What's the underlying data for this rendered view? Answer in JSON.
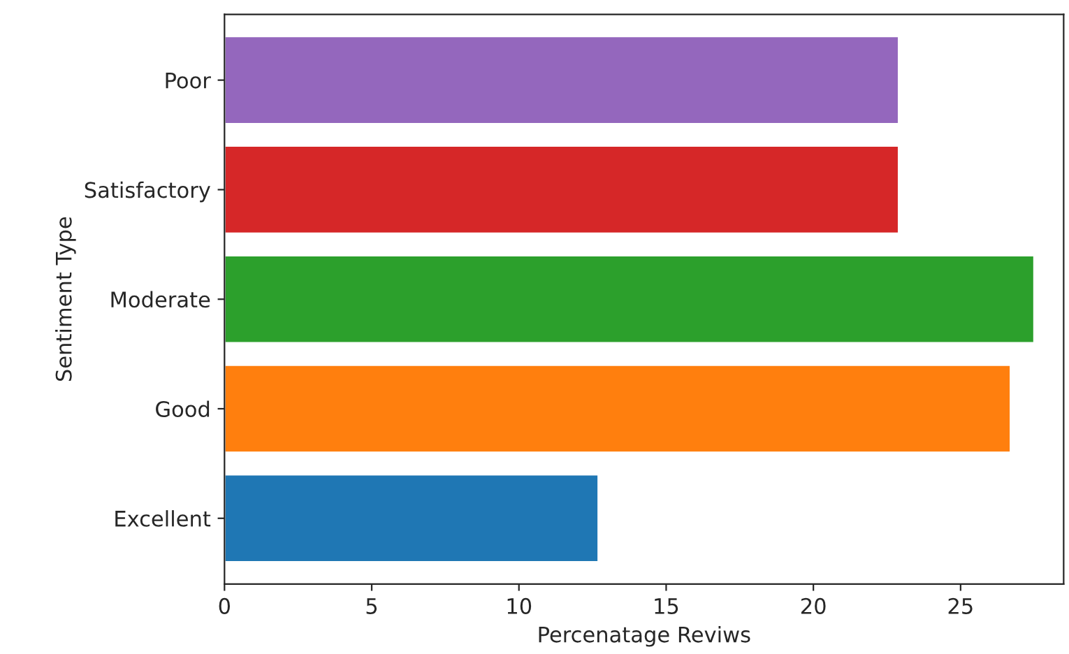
{
  "chart_data": {
    "type": "bar",
    "orientation": "horizontal",
    "xlabel": "Percenatage Reviws",
    "ylabel": "Sentiment Type",
    "categories": [
      "Poor",
      "Satisfactory",
      "Moderate",
      "Good",
      "Excellent"
    ],
    "values": [
      22.9,
      22.9,
      27.5,
      26.7,
      12.7
    ],
    "colors": [
      "#9467bd",
      "#d62728",
      "#2ca02c",
      "#ff7f0e",
      "#1f77b4"
    ],
    "xlim": [
      0,
      28.5
    ],
    "xticks": [
      0,
      5,
      10,
      15,
      20,
      25
    ],
    "grid": false,
    "legend": false
  }
}
